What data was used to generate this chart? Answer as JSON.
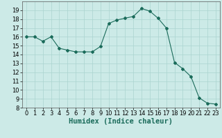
{
  "x": [
    0,
    1,
    2,
    3,
    4,
    5,
    6,
    7,
    8,
    9,
    10,
    11,
    12,
    13,
    14,
    15,
    16,
    17,
    18,
    19,
    20,
    21,
    22,
    23
  ],
  "y": [
    16.0,
    16.0,
    15.5,
    16.0,
    14.7,
    14.5,
    14.3,
    14.3,
    14.3,
    14.9,
    17.5,
    17.9,
    18.1,
    18.3,
    19.2,
    18.9,
    18.1,
    17.0,
    13.1,
    12.4,
    11.5,
    9.1,
    8.5,
    8.4
  ],
  "line_color": "#1a6b5a",
  "marker": "D",
  "marker_size": 2,
  "bg_color": "#cceae7",
  "grid_color": "#aad4d0",
  "xlabel": "Humidex (Indice chaleur)",
  "xlim": [
    -0.5,
    23.5
  ],
  "ylim": [
    8,
    20
  ],
  "yticks": [
    8,
    9,
    10,
    11,
    12,
    13,
    14,
    15,
    16,
    17,
    18,
    19
  ],
  "xticks": [
    0,
    1,
    2,
    3,
    4,
    5,
    6,
    7,
    8,
    9,
    10,
    11,
    12,
    13,
    14,
    15,
    16,
    17,
    18,
    19,
    20,
    21,
    22,
    23
  ],
  "tick_fontsize": 6,
  "xlabel_fontsize": 7.5
}
